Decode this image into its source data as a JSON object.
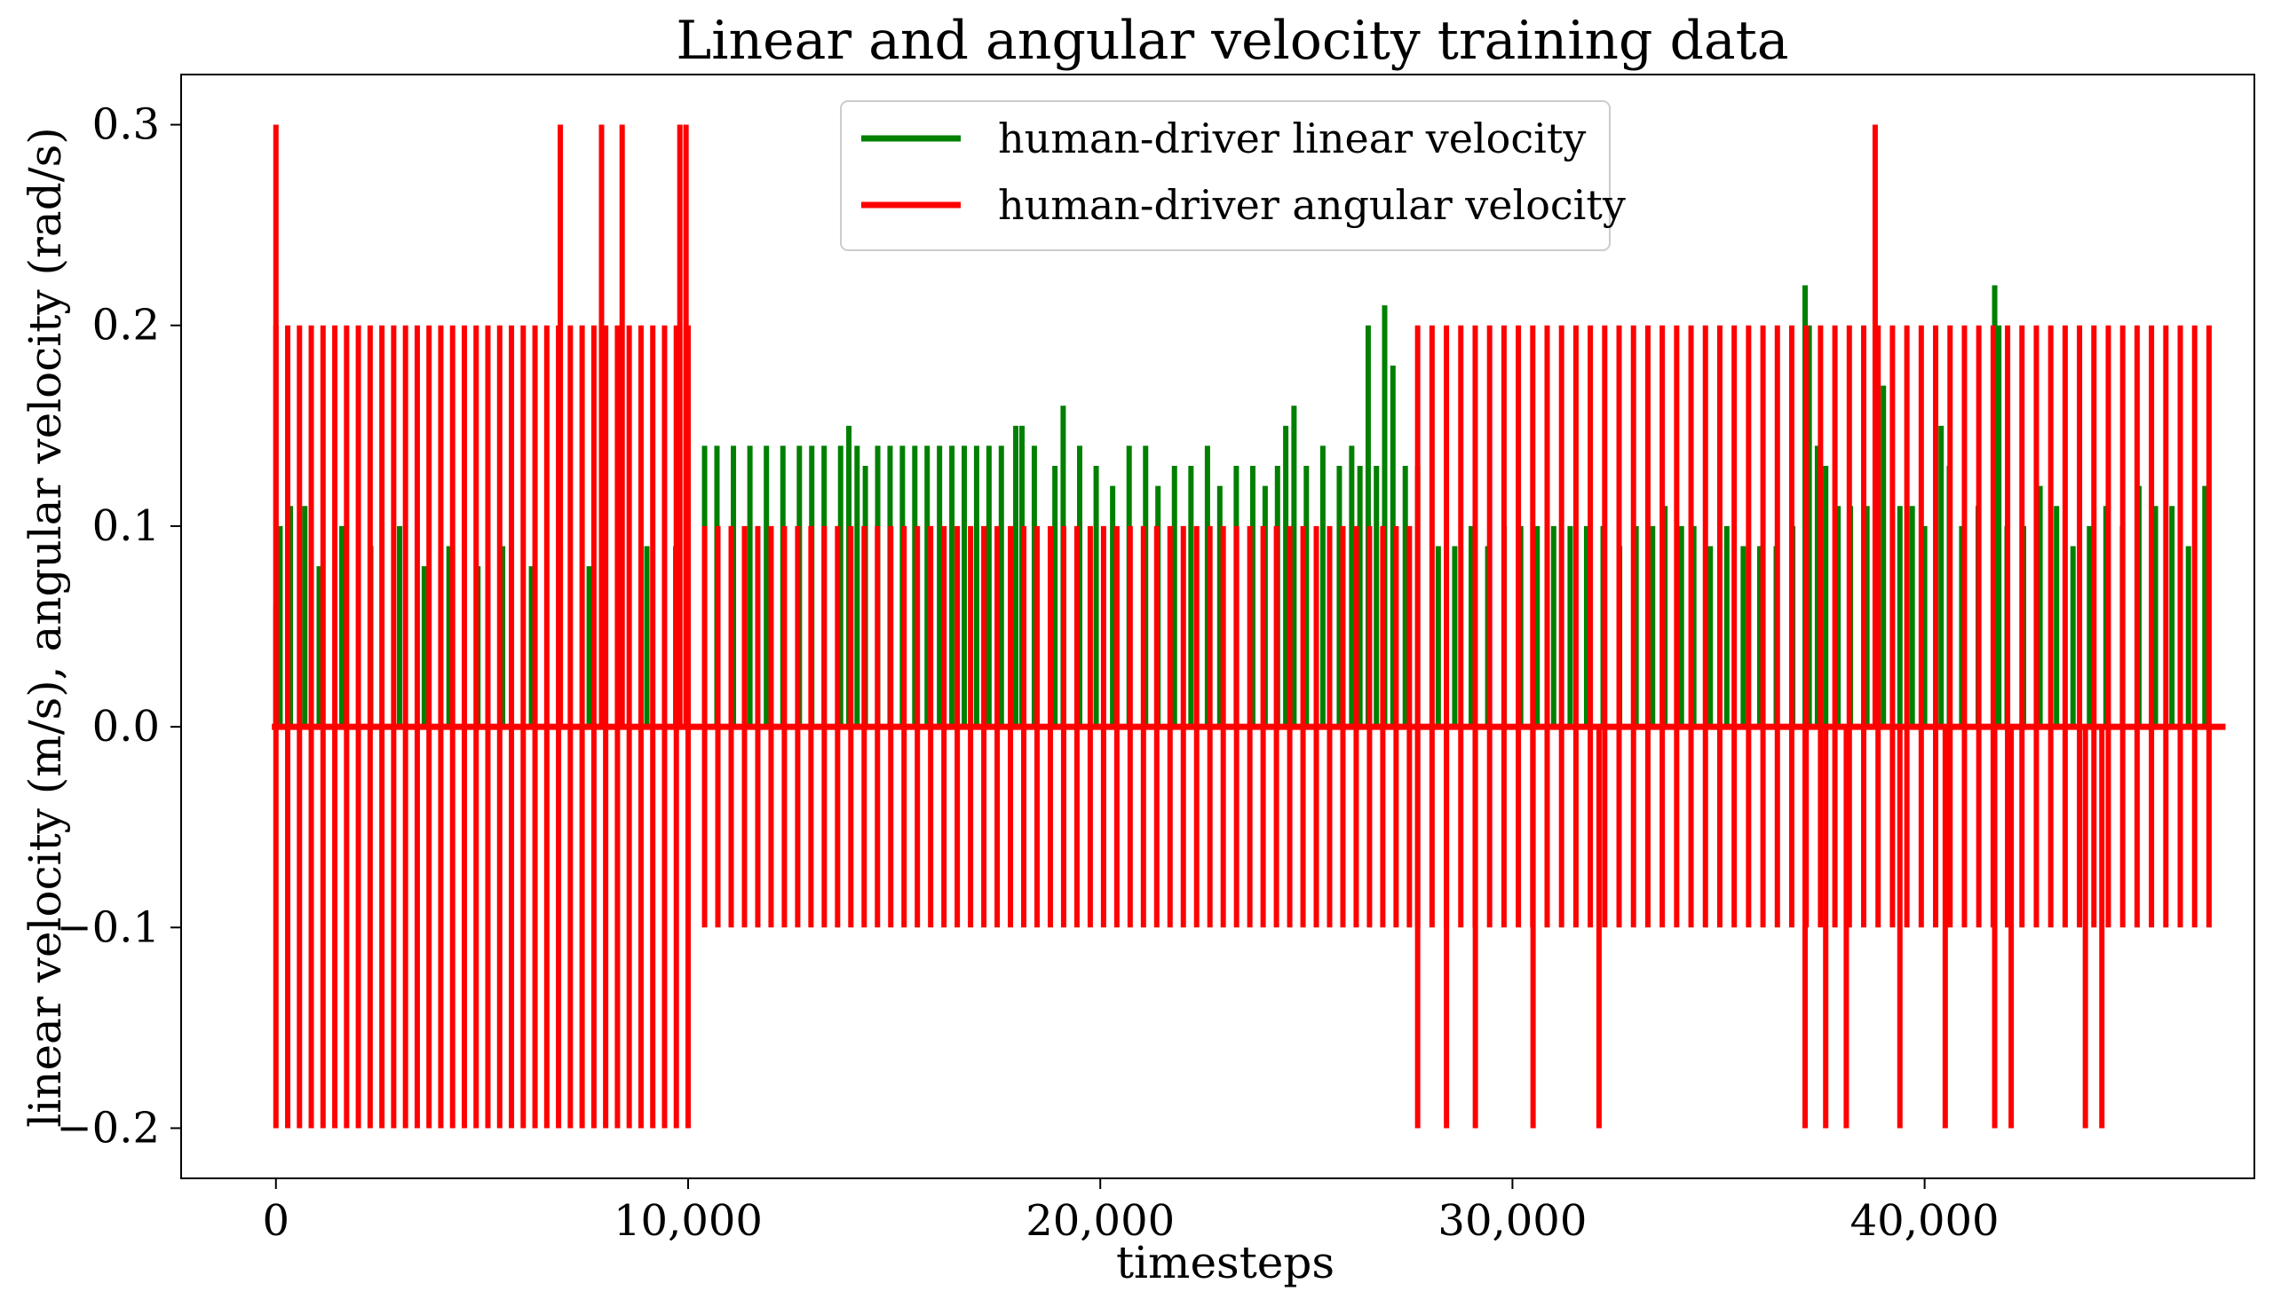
{
  "chart_data": {
    "type": "line",
    "title": "Linear and angular velocity training data",
    "xlabel": "timesteps",
    "ylabel": "linear velocity (m/s), angular velocity (rad/s)",
    "xlim": [
      -2300,
      48000
    ],
    "ylim": [
      -0.225,
      0.325
    ],
    "xticks": [
      0,
      10000,
      20000,
      30000,
      40000
    ],
    "xtick_labels": [
      "0",
      "10,000",
      "20,000",
      "30,000",
      "40,000"
    ],
    "yticks": [
      -0.2,
      -0.1,
      0.0,
      0.1,
      0.2,
      0.3
    ],
    "ytick_labels": [
      "−0.2",
      "−0.1",
      "0.0",
      "0.1",
      "0.2",
      "0.3"
    ],
    "legend_position": "top-center",
    "series": [
      {
        "name": "human-driver linear velocity",
        "color": "#008000",
        "spikes": [
          [
            0,
            0.06
          ],
          [
            100,
            0.1
          ],
          [
            350,
            0.11
          ],
          [
            700,
            0.11
          ],
          [
            1050,
            0.08
          ],
          [
            1600,
            0.1
          ],
          [
            2300,
            0.09
          ],
          [
            3000,
            0.1
          ],
          [
            3600,
            0.08
          ],
          [
            4200,
            0.09
          ],
          [
            4900,
            0.08
          ],
          [
            5500,
            0.09
          ],
          [
            6200,
            0.08
          ],
          [
            6900,
            0.09
          ],
          [
            7600,
            0.08
          ],
          [
            8300,
            0.09
          ],
          [
            9000,
            0.09
          ],
          [
            9700,
            0.09
          ],
          [
            10400,
            0.14
          ],
          [
            10700,
            0.14
          ],
          [
            11100,
            0.14
          ],
          [
            11500,
            0.14
          ],
          [
            11900,
            0.14
          ],
          [
            12300,
            0.14
          ],
          [
            12700,
            0.14
          ],
          [
            13000,
            0.14
          ],
          [
            13300,
            0.14
          ],
          [
            13700,
            0.14
          ],
          [
            13900,
            0.15
          ],
          [
            14100,
            0.14
          ],
          [
            14300,
            0.13
          ],
          [
            14600,
            0.14
          ],
          [
            14900,
            0.14
          ],
          [
            15200,
            0.14
          ],
          [
            15500,
            0.14
          ],
          [
            15800,
            0.14
          ],
          [
            16100,
            0.14
          ],
          [
            16400,
            0.14
          ],
          [
            16700,
            0.14
          ],
          [
            17000,
            0.14
          ],
          [
            17300,
            0.14
          ],
          [
            17600,
            0.14
          ],
          [
            17950,
            0.15
          ],
          [
            18100,
            0.15
          ],
          [
            18400,
            0.14
          ],
          [
            18900,
            0.13
          ],
          [
            19100,
            0.16
          ],
          [
            19500,
            0.14
          ],
          [
            19900,
            0.13
          ],
          [
            20300,
            0.12
          ],
          [
            20700,
            0.14
          ],
          [
            21100,
            0.14
          ],
          [
            21400,
            0.12
          ],
          [
            21800,
            0.13
          ],
          [
            22200,
            0.13
          ],
          [
            22600,
            0.14
          ],
          [
            22900,
            0.12
          ],
          [
            23300,
            0.13
          ],
          [
            23700,
            0.13
          ],
          [
            24000,
            0.12
          ],
          [
            24300,
            0.13
          ],
          [
            24500,
            0.15
          ],
          [
            24700,
            0.16
          ],
          [
            25000,
            0.13
          ],
          [
            25400,
            0.14
          ],
          [
            25800,
            0.13
          ],
          [
            26100,
            0.14
          ],
          [
            26300,
            0.13
          ],
          [
            26500,
            0.2
          ],
          [
            26700,
            0.13
          ],
          [
            26900,
            0.21
          ],
          [
            27100,
            0.18
          ],
          [
            27400,
            0.13
          ],
          [
            27700,
            0.13
          ],
          [
            28200,
            0.09
          ],
          [
            28600,
            0.09
          ],
          [
            29000,
            0.1
          ],
          [
            29400,
            0.09
          ],
          [
            29800,
            0.1
          ],
          [
            30200,
            0.1
          ],
          [
            30600,
            0.1
          ],
          [
            31000,
            0.1
          ],
          [
            31400,
            0.1
          ],
          [
            31800,
            0.1
          ],
          [
            32200,
            0.1
          ],
          [
            32600,
            0.09
          ],
          [
            33000,
            0.1
          ],
          [
            33400,
            0.1
          ],
          [
            33700,
            0.11
          ],
          [
            34100,
            0.1
          ],
          [
            34400,
            0.1
          ],
          [
            34800,
            0.09
          ],
          [
            35200,
            0.1
          ],
          [
            35600,
            0.09
          ],
          [
            36000,
            0.09
          ],
          [
            36400,
            0.09
          ],
          [
            36800,
            0.1
          ],
          [
            37100,
            0.22
          ],
          [
            37200,
            0.2
          ],
          [
            37400,
            0.14
          ],
          [
            37600,
            0.13
          ],
          [
            37900,
            0.11
          ],
          [
            38200,
            0.11
          ],
          [
            38600,
            0.11
          ],
          [
            39000,
            0.17
          ],
          [
            39400,
            0.11
          ],
          [
            39700,
            0.11
          ],
          [
            40000,
            0.1
          ],
          [
            40400,
            0.15
          ],
          [
            40600,
            0.13
          ],
          [
            40900,
            0.1
          ],
          [
            41300,
            0.11
          ],
          [
            41700,
            0.22
          ],
          [
            41800,
            0.2
          ],
          [
            42000,
            0.1
          ],
          [
            42400,
            0.1
          ],
          [
            42800,
            0.12
          ],
          [
            43200,
            0.11
          ],
          [
            43600,
            0.09
          ],
          [
            44000,
            0.1
          ],
          [
            44400,
            0.11
          ],
          [
            44800,
            0.1
          ],
          [
            45200,
            0.12
          ],
          [
            45600,
            0.11
          ],
          [
            46000,
            0.11
          ],
          [
            46400,
            0.09
          ],
          [
            46800,
            0.12
          ]
        ]
      },
      {
        "name": "human-driver angular velocity",
        "color": "#ff0000",
        "segments": [
          {
            "start": 0,
            "end": 10000,
            "count": 36,
            "max": 0.2,
            "min": -0.2
          },
          {
            "start": 10400,
            "end": 27500,
            "count": 54,
            "max": 0.1,
            "min": -0.1
          },
          {
            "start": 27700,
            "end": 46900,
            "count": 56,
            "max": 0.2,
            "min": -0.1
          }
        ],
        "extra_spikes": [
          [
            0,
            0.3
          ],
          [
            6900,
            0.3
          ],
          [
            7900,
            0.3
          ],
          [
            8400,
            0.3
          ],
          [
            9800,
            0.3
          ],
          [
            9950,
            0.3
          ],
          [
            38800,
            0.3
          ],
          [
            27700,
            -0.2
          ],
          [
            28400,
            -0.2
          ],
          [
            29100,
            -0.2
          ],
          [
            30500,
            -0.2
          ],
          [
            32100,
            -0.2
          ],
          [
            37100,
            -0.2
          ],
          [
            37600,
            -0.2
          ],
          [
            38100,
            -0.2
          ],
          [
            39400,
            -0.2
          ],
          [
            40500,
            -0.2
          ],
          [
            41700,
            -0.2
          ],
          [
            42100,
            -0.2
          ],
          [
            43900,
            -0.2
          ],
          [
            44300,
            -0.2
          ]
        ]
      }
    ]
  }
}
